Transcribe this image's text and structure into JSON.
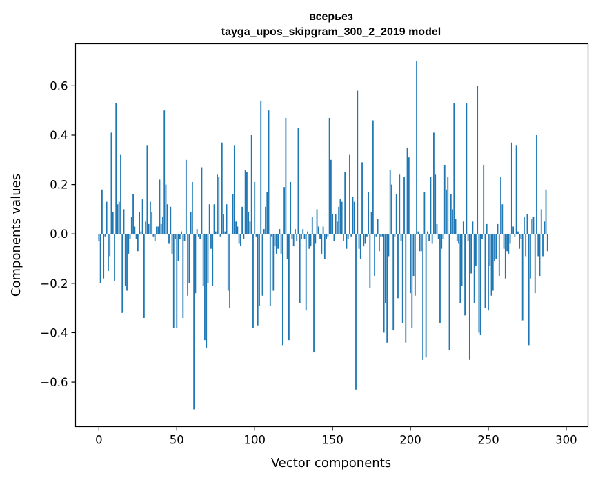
{
  "chart_data": {
    "type": "bar",
    "title": [
      "всерьез",
      "tayga_upos_skipgram_300_2_2019 model"
    ],
    "xlabel": "Vector components",
    "ylabel": "Components values",
    "xlim": [
      -15,
      314
    ],
    "ylim": [
      -0.78,
      0.77
    ],
    "xticks": [
      0,
      50,
      100,
      150,
      200,
      250,
      300
    ],
    "yticks": [
      -0.6,
      -0.4,
      -0.2,
      0.0,
      0.2,
      0.4,
      0.6
    ],
    "ytick_labels": [
      "−0.6",
      "−0.4",
      "−0.2",
      "0.0",
      "0.2",
      "0.4",
      "0.6"
    ],
    "xtick_labels": [
      "0",
      "50",
      "100",
      "150",
      "200",
      "250",
      "300"
    ],
    "grid": false,
    "bar_color": "#1f77b4",
    "values": [
      -0.03,
      -0.2,
      0.18,
      -0.18,
      -0.01,
      0.13,
      -0.15,
      -0.09,
      0.41,
      0.09,
      -0.19,
      0.53,
      0.12,
      0.13,
      0.32,
      -0.32,
      0.1,
      -0.21,
      -0.23,
      -0.08,
      -0.02,
      0.07,
      0.16,
      0.03,
      -0.02,
      -0.07,
      0.09,
      0.01,
      0.14,
      -0.34,
      0.05,
      0.36,
      0.04,
      0.13,
      0.09,
      -0.01,
      -0.03,
      0.03,
      0.03,
      0.22,
      0.04,
      0.07,
      0.5,
      0.2,
      0.12,
      -0.04,
      0.11,
      -0.08,
      -0.38,
      -0.02,
      -0.38,
      -0.11,
      -0.02,
      0.01,
      -0.34,
      -0.03,
      0.3,
      -0.25,
      -0.2,
      0.09,
      0.21,
      -0.71,
      -0.24,
      0.02,
      -0.01,
      -0.02,
      0.27,
      -0.21,
      -0.43,
      -0.46,
      -0.2,
      0.12,
      -0.06,
      -0.21,
      0.12,
      0.01,
      0.24,
      0.23,
      -0.01,
      0.37,
      0.08,
      0.01,
      0.12,
      -0.23,
      -0.3,
      0.0,
      0.16,
      0.36,
      0.05,
      0.03,
      -0.04,
      -0.05,
      0.11,
      -0.02,
      0.26,
      0.25,
      0.09,
      0.05,
      0.4,
      -0.38,
      0.21,
      -0.01,
      -0.37,
      -0.29,
      0.54,
      -0.25,
      0.02,
      0.11,
      0.17,
      0.5,
      -0.29,
      -0.01,
      -0.23,
      -0.05,
      -0.08,
      -0.06,
      0.02,
      -0.08,
      -0.45,
      0.19,
      0.47,
      -0.1,
      -0.43,
      0.21,
      -0.02,
      -0.05,
      0.02,
      -0.03,
      0.43,
      -0.28,
      -0.02,
      0.02,
      -0.02,
      -0.31,
      0.01,
      -0.06,
      -0.05,
      0.07,
      -0.48,
      -0.04,
      0.1,
      0.03,
      -0.02,
      -0.08,
      0.03,
      -0.1,
      -0.02,
      -0.01,
      0.47,
      0.3,
      0.08,
      -0.03,
      0.08,
      0.05,
      0.11,
      0.14,
      0.13,
      -0.03,
      0.25,
      -0.06,
      -0.02,
      0.32,
      -0.01,
      0.15,
      0.13,
      -0.63,
      0.58,
      -0.06,
      -0.1,
      0.29,
      -0.05,
      -0.04,
      -0.01,
      0.17,
      -0.22,
      0.09,
      0.46,
      -0.17,
      -0.01,
      0.06,
      -0.07,
      -0.01,
      -0.01,
      -0.4,
      -0.28,
      -0.44,
      -0.09,
      0.26,
      0.2,
      -0.39,
      -0.01,
      0.16,
      -0.26,
      0.24,
      -0.03,
      -0.36,
      0.23,
      -0.44,
      0.35,
      0.31,
      -0.24,
      -0.38,
      -0.17,
      -0.25,
      0.7,
      0.01,
      -0.07,
      -0.07,
      -0.51,
      0.17,
      -0.5,
      0.01,
      -0.03,
      0.23,
      -0.04,
      0.41,
      0.24,
      0.04,
      -0.02,
      -0.36,
      -0.06,
      -0.02,
      0.28,
      0.18,
      0.23,
      -0.47,
      0.16,
      0.1,
      0.53,
      0.06,
      -0.03,
      -0.04,
      -0.28,
      -0.21,
      0.05,
      -0.33,
      0.53,
      -0.03,
      -0.51,
      -0.16,
      0.05,
      -0.28,
      -0.13,
      0.6,
      -0.4,
      -0.41,
      -0.02,
      0.28,
      -0.3,
      0.04,
      -0.31,
      -0.13,
      -0.25,
      -0.23,
      -0.11,
      -0.1,
      0.04,
      -0.17,
      0.23,
      0.12,
      -0.06,
      -0.18,
      -0.07,
      -0.08,
      -0.04,
      0.37,
      0.03,
      -0.01,
      0.36,
      0.01,
      -0.06,
      -0.02,
      -0.35,
      0.07,
      -0.09,
      0.08,
      -0.45,
      -0.18,
      0.06,
      0.07,
      -0.24,
      0.4,
      -0.09,
      -0.17,
      0.1,
      -0.09,
      0.05,
      0.18,
      -0.07
    ]
  }
}
